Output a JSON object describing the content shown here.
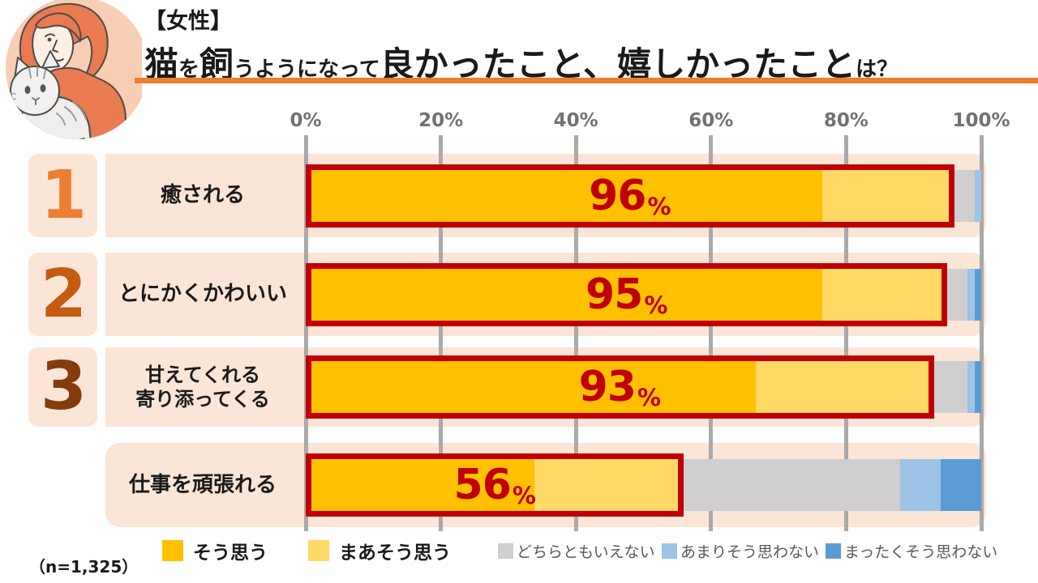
{
  "header": {
    "tag_line": "【女性】",
    "title_segments": [
      {
        "text": "猫",
        "size": "big"
      },
      {
        "text": "を",
        "size": "small"
      },
      {
        "text": "飼",
        "size": "big"
      },
      {
        "text": "うようになって",
        "size": "small"
      },
      {
        "text": "良かったこと、嬉しかったこと",
        "size": "big"
      },
      {
        "text": "は？",
        "size": "small"
      }
    ]
  },
  "labels": {
    "percent_suffix": "%"
  },
  "footnote": "（n=1,325）",
  "colors": {
    "accent_orange": "#ED7D31",
    "band_peach": "#FBE5D6",
    "circle_peach": "#F7CEB3",
    "highlight_red": "#C00000",
    "grid_gray": "#ABA9A9",
    "axis_text": "#757070",
    "legend_muted_text": "#595959",
    "rank_colors": [
      "#ED7D31",
      "#C55A11",
      "#843C0C"
    ]
  },
  "chart_data": {
    "type": "bar",
    "orientation": "horizontal",
    "stacked": true,
    "title": "【女性】猫を飼うようになって良かったこと、嬉しかったことは？",
    "xlim": [
      0,
      100
    ],
    "x_ticks": [
      "0%",
      "20%",
      "40%",
      "60%",
      "80%",
      "100%"
    ],
    "grid": true,
    "legend_position": "bottom",
    "categories": [
      "癒される",
      "とにかくかわいい",
      "甘えてくれる\n寄り添ってくる",
      "仕事を頑張れる"
    ],
    "ranks": [
      "1",
      "2",
      "3",
      ""
    ],
    "highlight_totals": [
      96,
      95,
      93,
      56
    ],
    "series": [
      {
        "name": "そう思う",
        "color": "#FFC000",
        "emphasis": true,
        "values": [
          77,
          77,
          67,
          34
        ]
      },
      {
        "name": "まあそう思う",
        "color": "#FFD966",
        "emphasis": true,
        "values": [
          19,
          18,
          26,
          22
        ]
      },
      {
        "name": "どちらともいえない",
        "color": "#D0CECE",
        "emphasis": false,
        "values": [
          3,
          3,
          5,
          32
        ]
      },
      {
        "name": "あまりそう思わない",
        "color": "#9DC3E6",
        "emphasis": false,
        "values": [
          1,
          1,
          1,
          6
        ]
      },
      {
        "name": "まったくそう思わない",
        "color": "#5B9BD5",
        "emphasis": false,
        "values": [
          0,
          1,
          1,
          6
        ]
      }
    ],
    "sample_note": "（n=1,325）"
  }
}
